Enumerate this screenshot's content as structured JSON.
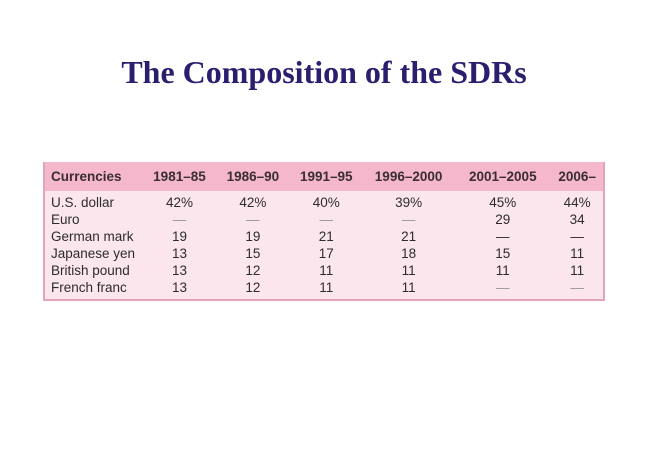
{
  "title": "The Composition of the SDRs",
  "table": {
    "headers": [
      "Currencies",
      "1981–85",
      "1986–90",
      "1991–95",
      "1996–2000",
      "2001–2005",
      "2006–"
    ],
    "rows": [
      {
        "currency": "U.S. dollar",
        "values": [
          "42%",
          "42%",
          "40%",
          "39%",
          "45%",
          "44%"
        ]
      },
      {
        "currency": "Euro",
        "values": [
          "—",
          "—",
          "—",
          "—",
          "29",
          "34"
        ]
      },
      {
        "currency": "German mark",
        "values": [
          "19",
          "19",
          "21",
          "21",
          "—",
          "—"
        ]
      },
      {
        "currency": "Japanese yen",
        "values": [
          "13",
          "15",
          "17",
          "18",
          "15",
          "11"
        ]
      },
      {
        "currency": "British pound",
        "values": [
          "13",
          "12",
          "11",
          "11",
          "11",
          "11"
        ]
      },
      {
        "currency": "French franc",
        "values": [
          "13",
          "12",
          "11",
          "11",
          "—",
          "—"
        ]
      }
    ]
  },
  "colors": {
    "title": "#2a1f6e",
    "header_bg": "#f4b7cc",
    "body_bg": "#fce6ee",
    "border": "#e0a4bb"
  }
}
